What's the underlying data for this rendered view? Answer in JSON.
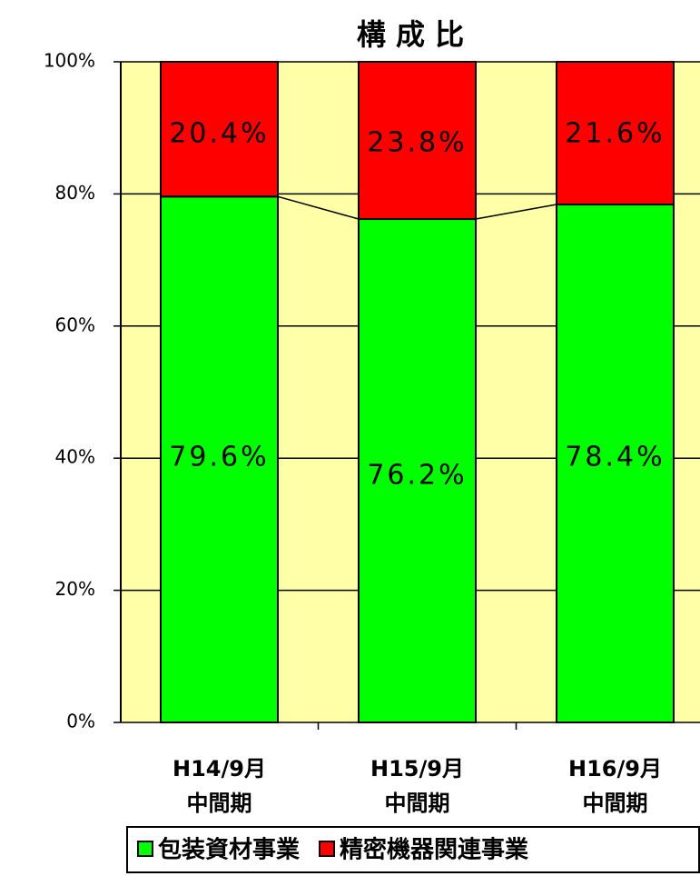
{
  "chart_data": {
    "type": "stacked_bar",
    "title": "構 成 比",
    "categories": [
      "H14/9月\n中間期",
      "H15/9月\n中間期",
      "H16/9月\n中間期"
    ],
    "series": [
      {
        "name": "包装資材事業",
        "color": "#00ff00",
        "values": [
          79.6,
          76.2,
          78.4
        ],
        "value_labels": [
          "79.6%",
          "76.2%",
          "78.4%"
        ]
      },
      {
        "name": "精密機器関連事業",
        "color": "#ff0000",
        "values": [
          20.4,
          23.8,
          21.6
        ],
        "value_labels": [
          "20.4%",
          "23.8%",
          "21.6%"
        ]
      }
    ],
    "ylim": [
      0,
      100
    ],
    "yticks": [
      {
        "value": 0,
        "label": "0%"
      },
      {
        "value": 20,
        "label": "20%"
      },
      {
        "value": 40,
        "label": "40%"
      },
      {
        "value": 60,
        "label": "60%"
      },
      {
        "value": 80,
        "label": "80%"
      },
      {
        "value": 100,
        "label": "100%"
      }
    ],
    "grid": true,
    "legend": "bottom",
    "background": "#ffffa8"
  }
}
